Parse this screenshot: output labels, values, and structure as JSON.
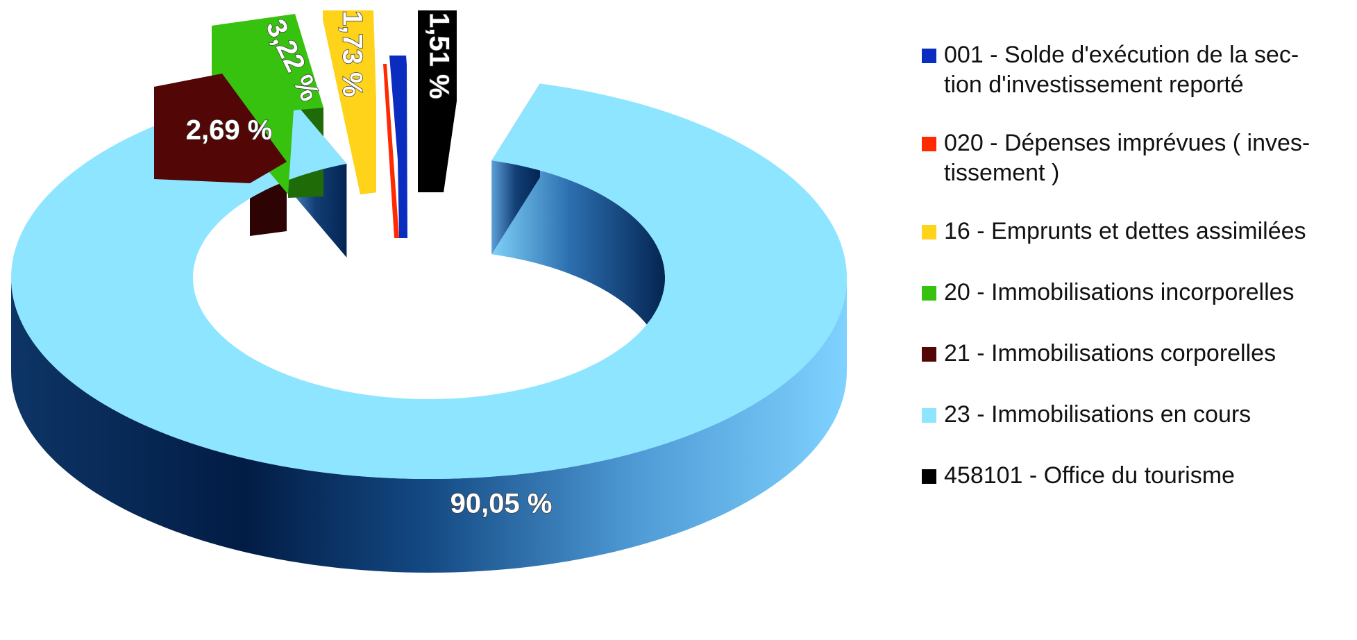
{
  "chart_data": {
    "type": "pie",
    "style": "3d-donut-exploded",
    "title": "",
    "legend_position": "right",
    "series": [
      {
        "name": "001 - Solde d'exécution de la section d'investissement reporté",
        "legend_lines": [
          "001 - Solde d'exécution de la sec-",
          "tion d'investissement reporté"
        ],
        "value": 0.45,
        "label": "",
        "color": "#0a2dbf"
      },
      {
        "name": "020 - Dépenses imprévues ( investissement )",
        "legend_lines": [
          "020 - Dépenses imprévues ( inves-",
          "tissement )"
        ],
        "value": 0.35,
        "label": "",
        "color": "#ff2a00"
      },
      {
        "name": "16 - Emprunts et dettes assimilées",
        "legend_lines": [
          "16 - Emprunts et dettes assimilées"
        ],
        "value": 1.73,
        "label": "1,73 %",
        "color": "#ffd31a"
      },
      {
        "name": "20 - Immobilisations incorporelles",
        "legend_lines": [
          "20 - Immobilisations incorporelles"
        ],
        "value": 3.22,
        "label": "3,22 %",
        "color": "#37c20f"
      },
      {
        "name": "21 - Immobilisations corporelles",
        "legend_lines": [
          "21 - Immobilisations corporelles"
        ],
        "value": 2.69,
        "label": "2,69 %",
        "color": "#520606"
      },
      {
        "name": "23 - Immobilisations en cours",
        "legend_lines": [
          "23 - Immobilisations en cours"
        ],
        "value": 90.05,
        "label": "90,05 %",
        "color": "#8ee5ff"
      },
      {
        "name": "458101 - Office du tourisme",
        "legend_lines": [
          "458101 - Office du tourisme"
        ],
        "value": 1.51,
        "label": "1,51 %",
        "color": "#000000"
      }
    ]
  }
}
